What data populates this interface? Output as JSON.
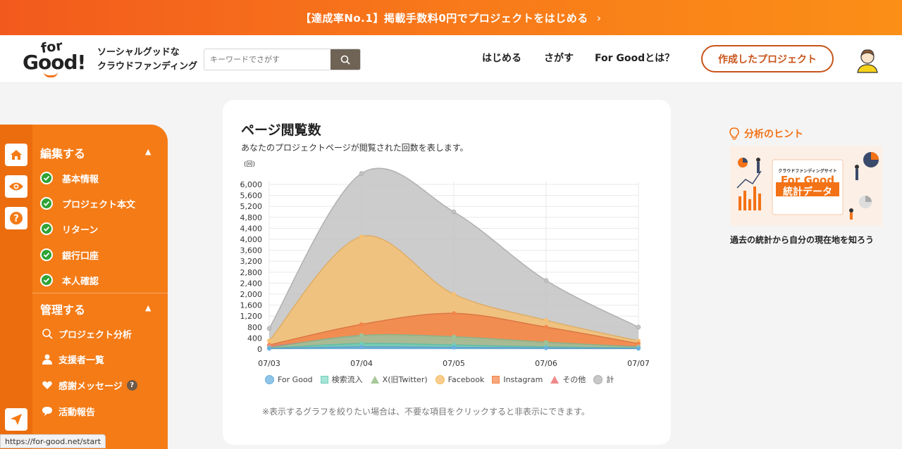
{
  "banner": {
    "text": "【達成率No.1】掲載手数料0円でプロジェクトをはじめる",
    "chevron": "›"
  },
  "header": {
    "logo_for": "for",
    "logo_good": "Good!",
    "tagline_1": "ソーシャルグッドな",
    "tagline_2": "クラウドファンディング",
    "search_placeholder": "キーワードでさがす",
    "nav": [
      "はじめる",
      "さがす",
      "For Goodとは？"
    ],
    "created_button": "作成したプロジェクト"
  },
  "sidebar": {
    "edit_title": "編集する",
    "edit_items": [
      "基本情報",
      "プロジェクト本文",
      "リターン",
      "銀行口座",
      "本人確認"
    ],
    "manage_title": "管理する",
    "manage_items": [
      "プロジェクト分析",
      "支援者一覧",
      "感謝メッセージ",
      "活動報告"
    ],
    "help_badge": "?"
  },
  "card": {
    "title": "ページ閲覧数",
    "subtitle": "あなたのプロジェクトページが閲覧された回数を表します。",
    "note": "※表示するグラフを絞りたい場合は、不要な項目をクリックすると非表示にできます。"
  },
  "chart_data": {
    "type": "area",
    "ylabel": "(回)",
    "ylim": [
      0,
      6000
    ],
    "yticks": [
      "0",
      "400",
      "800",
      "1,200",
      "1,600",
      "2,000",
      "2,400",
      "2,800",
      "3,200",
      "3,600",
      "4,000",
      "4,400",
      "4,800",
      "5,200",
      "5,600",
      "6,000"
    ],
    "categories": [
      "07/03",
      "07/04",
      "07/05",
      "07/06",
      "07/07"
    ],
    "series": [
      {
        "name": "計",
        "values": [
          750,
          6400,
          5000,
          2500,
          800
        ],
        "color": "#c3c3c3"
      },
      {
        "name": "Facebook",
        "values": [
          300,
          4100,
          2000,
          1050,
          300
        ],
        "color": "#f6c072"
      },
      {
        "name": "Instagram",
        "values": [
          150,
          900,
          1300,
          800,
          200
        ],
        "color": "#f2844a"
      },
      {
        "name": "その他",
        "values": [
          100,
          450,
          350,
          200,
          100
        ],
        "color": "#ef8a8a"
      },
      {
        "name": "X(旧Twitter)",
        "values": [
          50,
          500,
          450,
          250,
          80
        ],
        "color": "#9bc398"
      },
      {
        "name": "検索流入",
        "values": [
          30,
          200,
          150,
          80,
          40
        ],
        "color": "#6fcfb8"
      },
      {
        "name": "For Good",
        "values": [
          20,
          80,
          60,
          40,
          20
        ],
        "color": "#6aaee0"
      }
    ],
    "legend": [
      "For Good",
      "検索流入",
      "X(旧Twitter)",
      "Facebook",
      "Instagram",
      "その他",
      "計"
    ],
    "legend_position": "bottom"
  },
  "right": {
    "hint_title": "分析のヒント",
    "img_small": "クラウドファンディングサイト",
    "img_title": "For Good",
    "img_sub": "統計データ",
    "caption": "過去の統計から自分の現在地を知ろう"
  },
  "statusbar": {
    "url": "https://for-good.net/start"
  },
  "colors": {
    "accent": "#f37216",
    "sidebar": "#f47b16",
    "check": "#2fa335"
  }
}
